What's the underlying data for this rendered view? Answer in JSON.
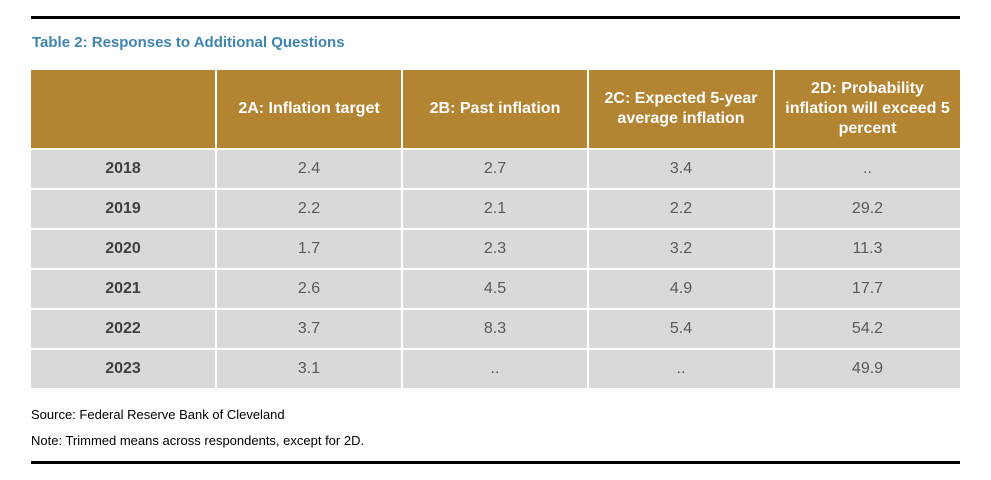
{
  "title": "Table 2: Responses to Additional Questions",
  "table": {
    "headers": [
      "",
      "2A: Inflation target",
      "2B: Past inflation",
      "2C: Expected 5-year average inflation",
      "2D: Probability inflation will exceed 5 percent"
    ],
    "rows": [
      [
        "2018",
        "2.4",
        "2.7",
        "3.4",
        ".."
      ],
      [
        "2019",
        "2.2",
        "2.1",
        "2.2",
        "29.2"
      ],
      [
        "2020",
        "1.7",
        "2.3",
        "3.2",
        "11.3"
      ],
      [
        "2021",
        "2.6",
        "4.5",
        "4.9",
        "17.7"
      ],
      [
        "2022",
        "3.7",
        "8.3",
        "5.4",
        "54.2"
      ],
      [
        "2023",
        "3.1",
        "..",
        "..",
        "49.9"
      ]
    ]
  },
  "source": "Source: Federal Reserve Bank of Cleveland",
  "note": "Note: Trimmed means across respondents, except for 2D.",
  "colors": {
    "title": "#3f84b1",
    "header_background": "#b38432",
    "cell_background": "#d9d9d9"
  }
}
